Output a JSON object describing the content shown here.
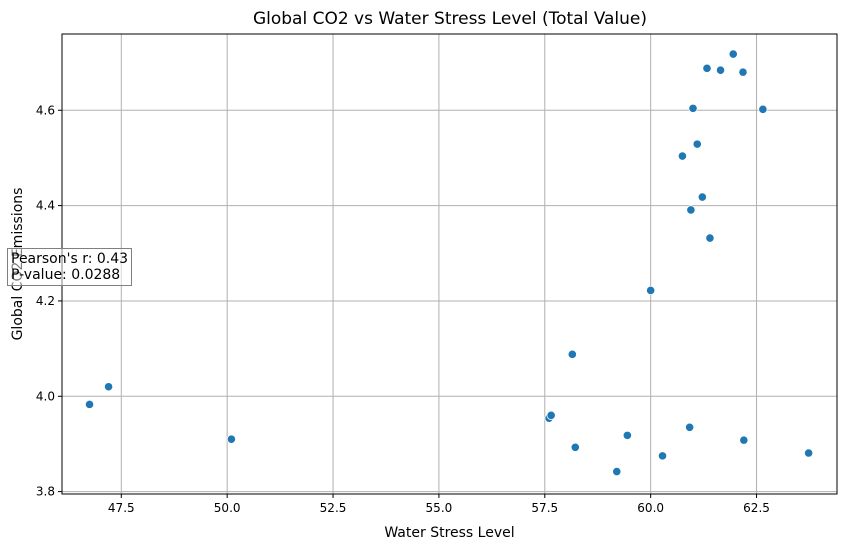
{
  "chart_data": {
    "type": "scatter",
    "title": "Global CO2 vs Water Stress Level (Total Value)",
    "xlabel": "Water Stress Level",
    "ylabel": "Global CO2 Emissions",
    "xlim": [
      46.1,
      64.4
    ],
    "ylim": [
      3.795,
      4.76
    ],
    "xticks": [
      "47.5",
      "50.0",
      "52.5",
      "55.0",
      "57.5",
      "60.0",
      "62.5"
    ],
    "xtick_values": [
      47.5,
      50.0,
      52.5,
      55.0,
      57.5,
      60.0,
      62.5
    ],
    "yticks": [
      "3.8",
      "4.0",
      "4.2",
      "4.4",
      "4.6"
    ],
    "ytick_values": [
      3.8,
      4.0,
      4.2,
      4.4,
      4.6
    ],
    "grid": true,
    "marker_color": "#1f77b4",
    "points": [
      {
        "x": 46.75,
        "y": 3.983
      },
      {
        "x": 47.2,
        "y": 4.02
      },
      {
        "x": 50.1,
        "y": 3.91
      },
      {
        "x": 57.6,
        "y": 3.954
      },
      {
        "x": 57.65,
        "y": 3.96
      },
      {
        "x": 58.15,
        "y": 4.088
      },
      {
        "x": 58.22,
        "y": 3.893
      },
      {
        "x": 59.2,
        "y": 3.842
      },
      {
        "x": 59.45,
        "y": 3.918
      },
      {
        "x": 60.0,
        "y": 4.222
      },
      {
        "x": 60.28,
        "y": 3.875
      },
      {
        "x": 60.75,
        "y": 4.504
      },
      {
        "x": 60.92,
        "y": 3.935
      },
      {
        "x": 60.95,
        "y": 4.391
      },
      {
        "x": 61.0,
        "y": 4.604
      },
      {
        "x": 61.1,
        "y": 4.529
      },
      {
        "x": 61.22,
        "y": 4.418
      },
      {
        "x": 61.33,
        "y": 4.688
      },
      {
        "x": 61.4,
        "y": 4.332
      },
      {
        "x": 61.65,
        "y": 4.684
      },
      {
        "x": 61.95,
        "y": 4.718
      },
      {
        "x": 62.18,
        "y": 4.68
      },
      {
        "x": 62.2,
        "y": 3.908
      },
      {
        "x": 62.65,
        "y": 4.602
      },
      {
        "x": 63.73,
        "y": 3.881
      }
    ],
    "annotation": {
      "line1": "Pearson's r: 0.43",
      "line2": "P-value: 0.0288"
    }
  }
}
